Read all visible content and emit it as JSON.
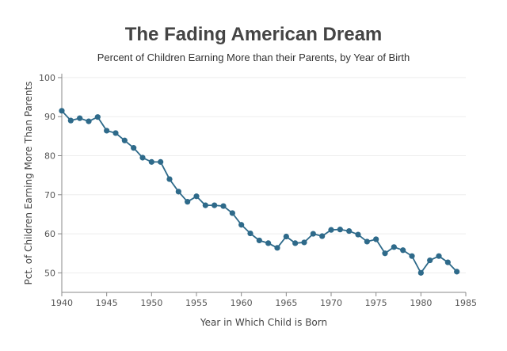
{
  "chart_data": {
    "type": "line",
    "title": "The Fading American Dream",
    "subtitle": "Percent of Children Earning More than their Parents, by Year of Birth",
    "xlabel": "Year in Which Child is Born",
    "ylabel": "Pct. of Children Earning More Than Parents",
    "xlim": [
      1940,
      1985
    ],
    "ylim": [
      45,
      101
    ],
    "x_ticks": [
      "1940",
      "1945",
      "1950",
      "1955",
      "1960",
      "1965",
      "1970",
      "1975",
      "1980",
      "1985"
    ],
    "y_ticks": [
      "50",
      "60",
      "70",
      "80",
      "90",
      "100"
    ],
    "grid": "horizontal",
    "legend": "none",
    "series_color": "#2e6a8a",
    "x": [
      1940,
      1941,
      1942,
      1943,
      1944,
      1945,
      1946,
      1947,
      1948,
      1949,
      1950,
      1951,
      1952,
      1953,
      1954,
      1955,
      1956,
      1957,
      1958,
      1959,
      1960,
      1961,
      1962,
      1963,
      1964,
      1965,
      1966,
      1967,
      1968,
      1969,
      1970,
      1971,
      1972,
      1973,
      1974,
      1975,
      1976,
      1977,
      1978,
      1979,
      1980,
      1981,
      1982,
      1983,
      1984
    ],
    "y": [
      91.5,
      89.0,
      89.6,
      88.8,
      89.9,
      86.4,
      85.8,
      83.9,
      82.0,
      79.5,
      78.4,
      78.4,
      74.0,
      70.8,
      68.2,
      69.6,
      67.3,
      67.3,
      67.1,
      65.3,
      62.3,
      60.1,
      58.3,
      57.6,
      56.4,
      59.3,
      57.6,
      57.8,
      60.0,
      59.4,
      61.0,
      61.1,
      60.7,
      59.8,
      58.0,
      58.6,
      55.0,
      56.6,
      55.8,
      54.3,
      50.0,
      53.2,
      54.3,
      52.7,
      50.3
    ]
  }
}
